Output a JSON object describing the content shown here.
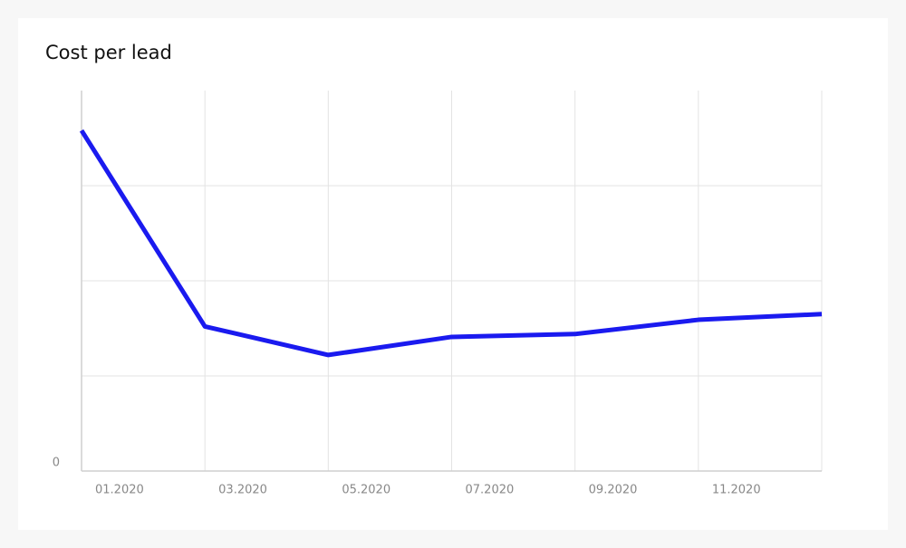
{
  "chart_data": {
    "type": "line",
    "title": "Cost per lead",
    "categories": [
      "01.2020",
      "03.2020",
      "05.2020",
      "07.2020",
      "09.2020",
      "11.2020",
      null
    ],
    "series": [
      {
        "color": "#1a1aef",
        "values": [
          3.58,
          1.52,
          1.22,
          1.41,
          1.44,
          1.59,
          1.65
        ]
      }
    ],
    "ylim": [
      0,
      4
    ],
    "yticks": [
      0
    ],
    "ygrid": [
      1,
      2,
      3
    ],
    "grid": true
  }
}
